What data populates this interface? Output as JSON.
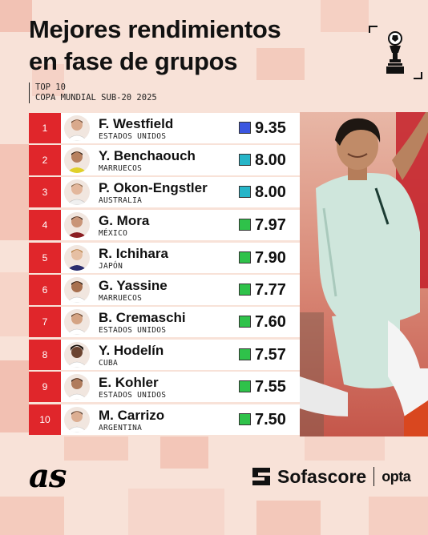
{
  "header": {
    "title_line1": "Mejores rendimientos",
    "title_line2": "en fase de grupos",
    "top_label": "TOP 10",
    "competition": "COPA MUNDIAL SUB-20 2025"
  },
  "players": [
    {
      "rank": "1",
      "name": "F. Westfield",
      "country": "ESTADOS UNIDOS",
      "rating": "9.35",
      "color": "#3b56e0"
    },
    {
      "rank": "2",
      "name": "Y. Benchaouch",
      "country": "MARRUECOS",
      "rating": "8.00",
      "color": "#26b5c8"
    },
    {
      "rank": "3",
      "name": "P. Okon-Engstler",
      "country": "AUSTRALIA",
      "rating": "8.00",
      "color": "#26b5c8"
    },
    {
      "rank": "4",
      "name": "G. Mora",
      "country": "MÉXICO",
      "rating": "7.97",
      "color": "#2fc24a"
    },
    {
      "rank": "5",
      "name": "R. Ichihara",
      "country": "JAPÓN",
      "rating": "7.90",
      "color": "#2fc24a"
    },
    {
      "rank": "6",
      "name": "G. Yassine",
      "country": "MARRUECOS",
      "rating": "7.77",
      "color": "#2fc24a"
    },
    {
      "rank": "7",
      "name": "B. Cremaschi",
      "country": "ESTADOS UNIDOS",
      "rating": "7.60",
      "color": "#2fc24a"
    },
    {
      "rank": "8",
      "name": "Y. Hodelín",
      "country": "CUBA",
      "rating": "7.57",
      "color": "#2fc24a"
    },
    {
      "rank": "9",
      "name": "E. Kohler",
      "country": "ESTADOS UNIDOS",
      "rating": "7.55",
      "color": "#2fc24a"
    },
    {
      "rank": "10",
      "name": "M. Carrizo",
      "country": "ARGENTINA",
      "rating": "7.50",
      "color": "#2fc24a"
    }
  ],
  "footer": {
    "as_logo": "as",
    "sofascore": "Sofascore",
    "opta": "opta"
  },
  "colors": {
    "accent_red": "#e0262b",
    "background": "#f8e2d8"
  }
}
